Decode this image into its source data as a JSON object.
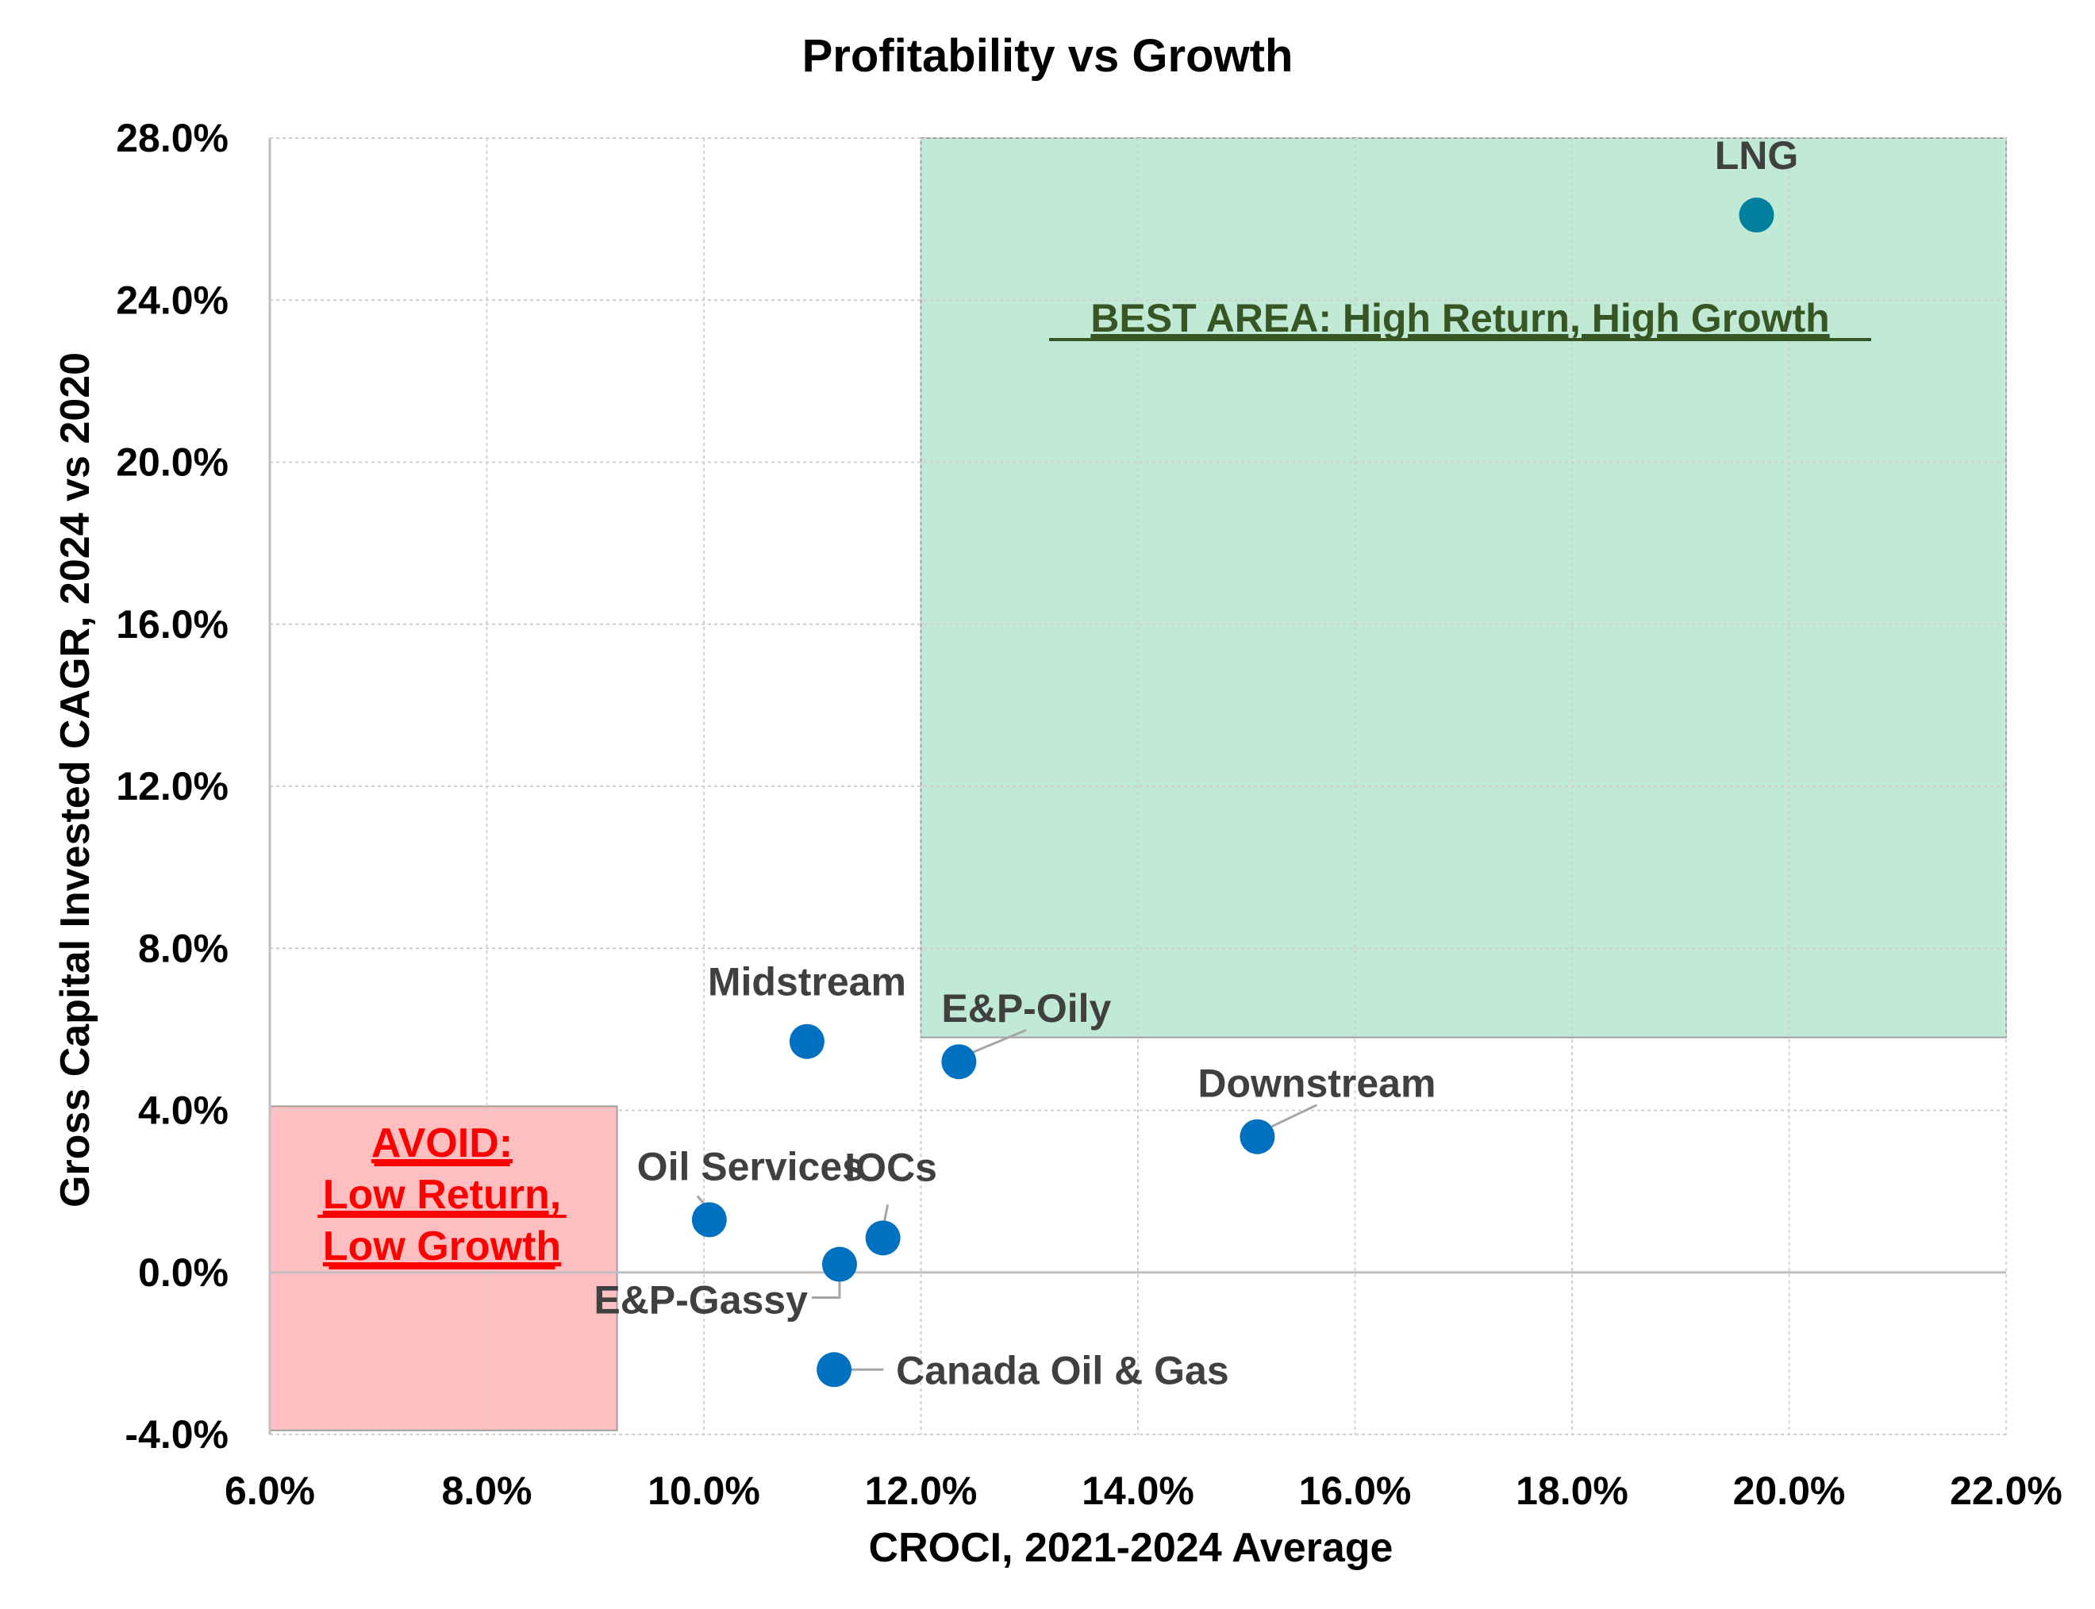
{
  "chart_data": {
    "type": "scatter",
    "title": "Profitability vs Growth",
    "xlabel": "CROCI, 2021-2024 Average",
    "ylabel": "Gross Capital Invested CAGR, 2024 vs 2020",
    "xlim": [
      6.0,
      22.0
    ],
    "ylim": [
      -4.0,
      28.0
    ],
    "x_ticks": [
      "6.0%",
      "8.0%",
      "10.0%",
      "12.0%",
      "14.0%",
      "16.0%",
      "18.0%",
      "20.0%",
      "22.0%"
    ],
    "y_ticks": [
      "-4.0%",
      "0.0%",
      "4.0%",
      "8.0%",
      "12.0%",
      "16.0%",
      "20.0%",
      "24.0%",
      "28.0%"
    ],
    "grid": true,
    "points": [
      {
        "label": "LNG",
        "x": 19.7,
        "y": 26.1
      },
      {
        "label": "Midstream",
        "x": 10.95,
        "y": 5.7
      },
      {
        "label": "E&P-Oily",
        "x": 12.35,
        "y": 5.2
      },
      {
        "label": "Downstream",
        "x": 15.1,
        "y": 3.35
      },
      {
        "label": "Oil Services",
        "x": 10.05,
        "y": 1.3
      },
      {
        "label": "IOCs",
        "x": 11.65,
        "y": 0.85
      },
      {
        "label": "E&P-Gassy",
        "x": 11.25,
        "y": 0.2
      },
      {
        "label": "Canada Oil & Gas",
        "x": 11.2,
        "y": -2.4
      }
    ],
    "regions": [
      {
        "label": "BEST AREA: High Return, High Growth",
        "x_range": [
          12.0,
          22.0
        ],
        "y_range": [
          5.8,
          28.0
        ],
        "color": "#c1ead6",
        "text_color": "#375623"
      },
      {
        "label_lines": [
          "AVOID:",
          "Low Return,",
          "Low Growth"
        ],
        "x_range": [
          6.0,
          9.2
        ],
        "y_range": [
          -3.9,
          4.1
        ],
        "color": "#ffbfc0",
        "text_color": "#ff0000"
      }
    ],
    "colors": {
      "point": "#0070c0",
      "lng_point": "#00809d",
      "label_dark_green": "#2e5748",
      "label_gray": "#404040",
      "grid": "#d0d0d0"
    }
  }
}
